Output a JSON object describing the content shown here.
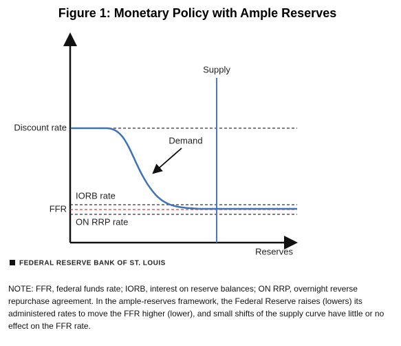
{
  "header": {
    "title": "Figure 1: Monetary Policy with Ample Reserves"
  },
  "diagram": {
    "y_labels": {
      "discount_rate": "Discount rate",
      "ffr": "FFR"
    },
    "line_labels": {
      "iorb": "IORB rate",
      "on_rrp": "ON RRP rate"
    },
    "curve_labels": {
      "supply": "Supply",
      "demand": "Demand"
    },
    "x_axis_label": "Reserves"
  },
  "source": "FEDERAL RESERVE BANK OF ST. LOUIS",
  "note": "NOTE: FFR, federal funds rate; IORB, interest on reserve balances; ON RRP, overnight reverse repurchase agreement. In the ample-reserves framework, the Federal Reserve raises (lowers) its administered rates to move the FFR higher (lower), and small shifts of the supply curve have little or no effect on the FFR rate."
}
